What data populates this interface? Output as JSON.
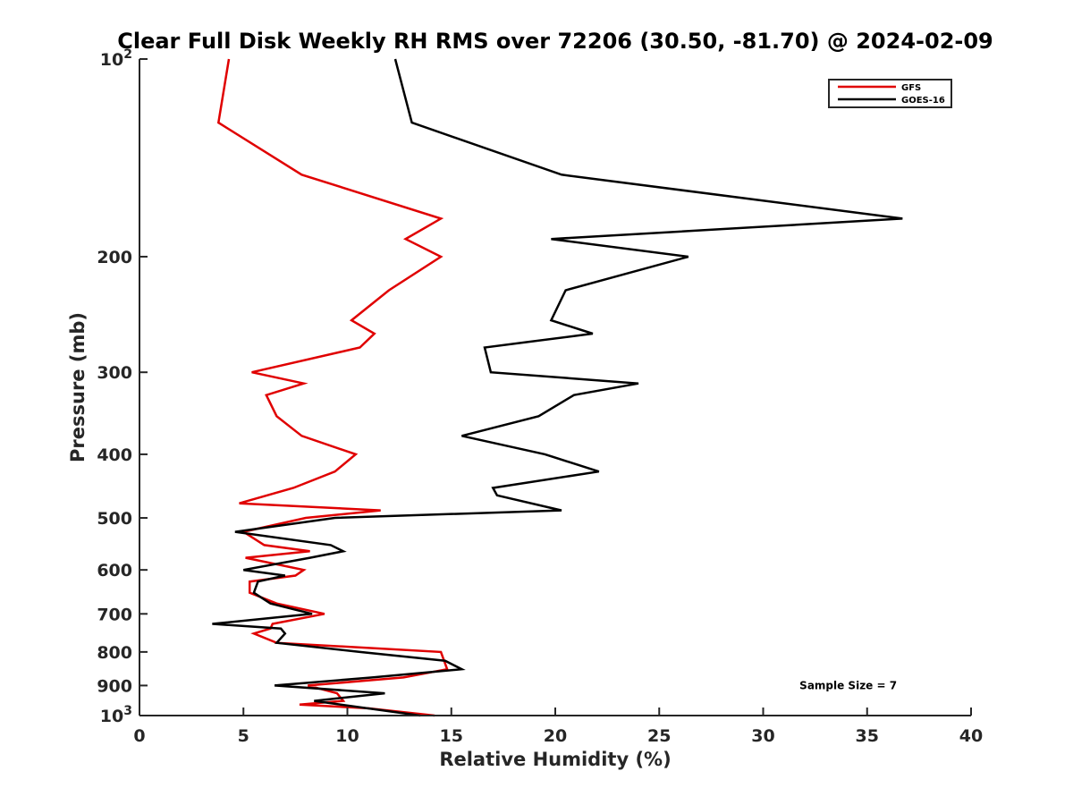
{
  "chart_data": {
    "type": "line",
    "title": "Clear Full Disk Weekly RH RMS over 72206 (30.50, -81.70) @ 2024-02-09",
    "xlabel": "Relative Humidity (%)",
    "ylabel": "Pressure (mb)",
    "xlim": [
      0,
      40
    ],
    "ylim": [
      100,
      1000
    ],
    "y_scale": "log",
    "y_reversed": true,
    "grid": false,
    "legend_position": "top-right",
    "x_ticks": [
      0,
      5,
      10,
      15,
      20,
      25,
      30,
      35,
      40
    ],
    "x_tick_labels": [
      "0",
      "5",
      "10",
      "15",
      "20",
      "25",
      "30",
      "35",
      "40"
    ],
    "y_ticks": [
      100,
      200,
      300,
      400,
      500,
      600,
      700,
      800,
      900,
      1000
    ],
    "y_tick_labels": [
      {
        "base": "10",
        "exp": "2"
      },
      {
        "base": "200",
        "exp": ""
      },
      {
        "base": "300",
        "exp": ""
      },
      {
        "base": "400",
        "exp": ""
      },
      {
        "base": "500",
        "exp": ""
      },
      {
        "base": "600",
        "exp": ""
      },
      {
        "base": "700",
        "exp": ""
      },
      {
        "base": "800",
        "exp": ""
      },
      {
        "base": "900",
        "exp": ""
      },
      {
        "base": "10",
        "exp": "3"
      }
    ],
    "series": [
      {
        "name": "GFS",
        "color": "#e00000",
        "points": [
          [
            4.3,
            100
          ],
          [
            3.8,
            125
          ],
          [
            7.8,
            150
          ],
          [
            14.5,
            175
          ],
          [
            12.8,
            188
          ],
          [
            14.5,
            200
          ],
          [
            12.0,
            225
          ],
          [
            10.2,
            250
          ],
          [
            11.3,
            262
          ],
          [
            10.6,
            275
          ],
          [
            5.4,
            300
          ],
          [
            7.9,
            312
          ],
          [
            6.1,
            325
          ],
          [
            6.6,
            350
          ],
          [
            7.8,
            375
          ],
          [
            10.4,
            400
          ],
          [
            9.4,
            425
          ],
          [
            7.4,
            450
          ],
          [
            4.8,
            475
          ],
          [
            11.6,
            487
          ],
          [
            8.0,
            500
          ],
          [
            5.0,
            525
          ],
          [
            6.0,
            550
          ],
          [
            8.2,
            562
          ],
          [
            5.1,
            575
          ],
          [
            7.9,
            600
          ],
          [
            7.5,
            612
          ],
          [
            5.3,
            625
          ],
          [
            5.3,
            650
          ],
          [
            6.6,
            675
          ],
          [
            8.9,
            700
          ],
          [
            6.4,
            725
          ],
          [
            6.3,
            737
          ],
          [
            5.5,
            750
          ],
          [
            6.6,
            775
          ],
          [
            14.5,
            800
          ],
          [
            14.8,
            850
          ],
          [
            12.7,
            875
          ],
          [
            8.1,
            900
          ],
          [
            9.5,
            925
          ],
          [
            9.8,
            950
          ],
          [
            7.7,
            962
          ],
          [
            11.0,
            975
          ],
          [
            14.2,
            1000
          ]
        ]
      },
      {
        "name": "GOES-16",
        "color": "#000000",
        "points": [
          [
            12.3,
            100
          ],
          [
            13.1,
            125
          ],
          [
            20.3,
            150
          ],
          [
            36.7,
            175
          ],
          [
            19.8,
            188
          ],
          [
            26.4,
            200
          ],
          [
            20.5,
            225
          ],
          [
            19.8,
            250
          ],
          [
            21.8,
            262
          ],
          [
            16.6,
            275
          ],
          [
            16.9,
            300
          ],
          [
            24.0,
            312
          ],
          [
            20.9,
            325
          ],
          [
            19.2,
            350
          ],
          [
            15.5,
            375
          ],
          [
            19.5,
            400
          ],
          [
            22.1,
            425
          ],
          [
            17.0,
            450
          ],
          [
            17.2,
            462
          ],
          [
            20.3,
            487
          ],
          [
            9.4,
            500
          ],
          [
            4.6,
            525
          ],
          [
            9.2,
            550
          ],
          [
            9.8,
            562
          ],
          [
            8.2,
            575
          ],
          [
            5.0,
            600
          ],
          [
            7.0,
            612
          ],
          [
            5.7,
            625
          ],
          [
            5.5,
            650
          ],
          [
            6.3,
            675
          ],
          [
            8.3,
            700
          ],
          [
            3.5,
            725
          ],
          [
            6.8,
            737
          ],
          [
            7.0,
            750
          ],
          [
            6.6,
            775
          ],
          [
            10.6,
            800
          ],
          [
            14.7,
            825
          ],
          [
            15.5,
            850
          ],
          [
            11.2,
            875
          ],
          [
            6.5,
            900
          ],
          [
            11.8,
            925
          ],
          [
            8.4,
            950
          ],
          [
            13.5,
            1000
          ]
        ]
      }
    ],
    "annotations": [
      {
        "text": "Sample Size = 7",
        "x": 36.5,
        "y": 900
      }
    ]
  }
}
